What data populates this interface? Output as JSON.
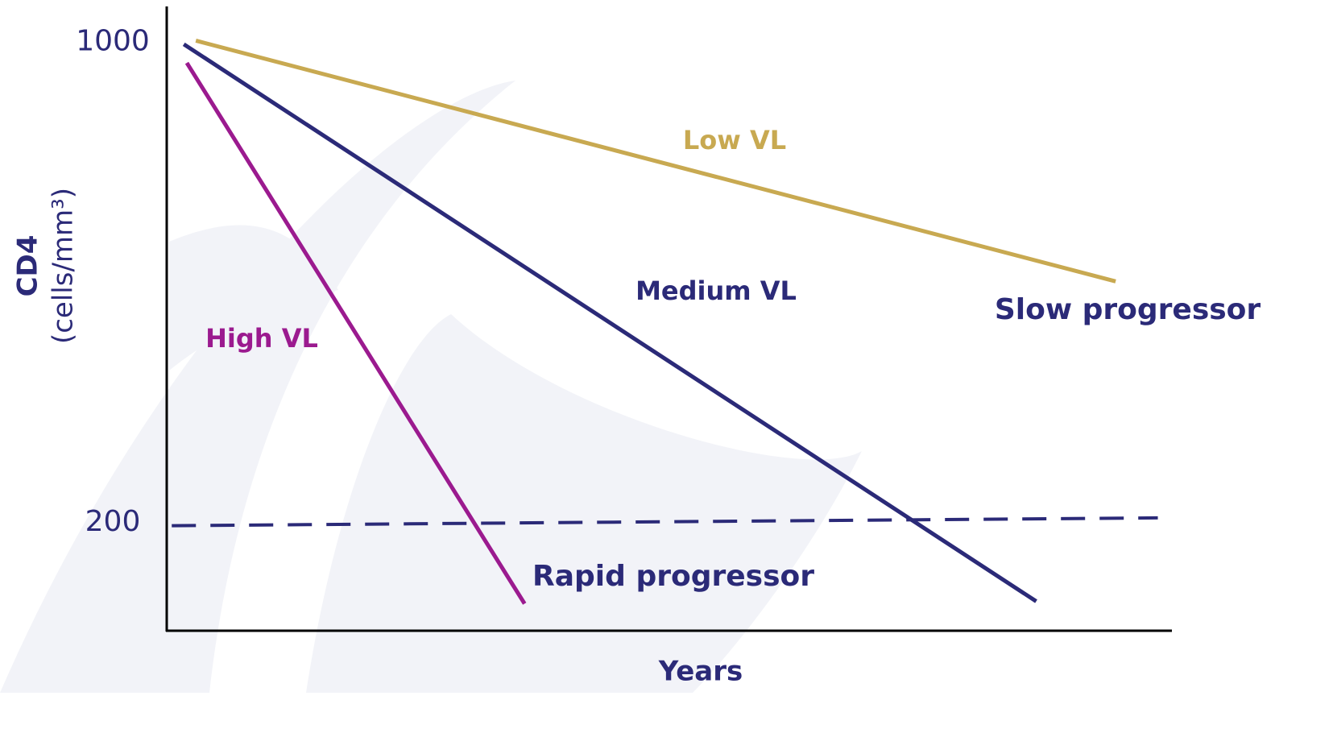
{
  "chart_data": {
    "type": "line",
    "xlabel": "Years",
    "ylabel": [
      "CD4",
      "(cells/mm³)"
    ],
    "xlim": [
      0,
      100
    ],
    "ylim": [
      20,
      1060
    ],
    "yticks": [
      200,
      1000
    ],
    "grid": false,
    "series": [
      {
        "color": "#c8a951",
        "x": [
          2.9,
          94.4
        ],
        "values": [
          1003,
          602
        ]
      },
      {
        "color": "#2b2a78",
        "x": [
          1.7,
          86.5
        ],
        "values": [
          997,
          69
        ]
      },
      {
        "color": "#9b1a8f",
        "x": [
          2.0,
          35.6
        ],
        "values": [
          966,
          65
        ]
      },
      {
        "color": "#2b2a78",
        "dashed": true,
        "x": [
          0.5,
          98.6
        ],
        "values": [
          195,
          208
        ]
      }
    ],
    "annotations": [
      {
        "text": "Low VL",
        "color": "#c8a951"
      },
      {
        "text": "Medium VL",
        "color": "#2b2a78"
      },
      {
        "text": "High VL",
        "color": "#9b1a8f"
      },
      {
        "text": "Slow progressor",
        "color": "#2b2a78"
      },
      {
        "text": "Rapid progressor",
        "color": "#2b2a78"
      }
    ]
  }
}
